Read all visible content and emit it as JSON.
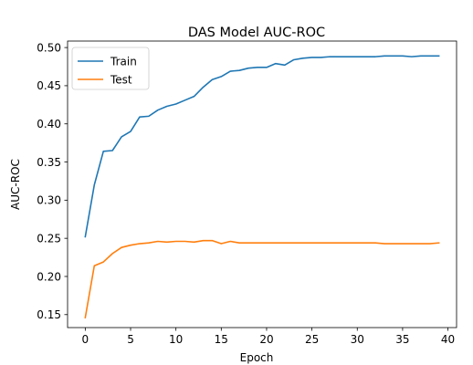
{
  "chart_data": {
    "type": "line",
    "title": "DAS Model AUC-ROC",
    "xlabel": "Epoch",
    "ylabel": "AUC-ROC",
    "xlim": [
      -1.95,
      40.95
    ],
    "ylim": [
      0.133,
      0.5085
    ],
    "xticks": [
      0,
      5,
      10,
      15,
      20,
      25,
      30,
      35,
      40
    ],
    "xtick_labels": [
      "0",
      "5",
      "10",
      "15",
      "20",
      "25",
      "30",
      "35",
      "40"
    ],
    "yticks": [
      0.15,
      0.2,
      0.25,
      0.3,
      0.35,
      0.4,
      0.45,
      0.5
    ],
    "ytick_labels": [
      "0.15",
      "0.20",
      "0.25",
      "0.30",
      "0.35",
      "0.40",
      "0.45",
      "0.50"
    ],
    "grid": false,
    "legend_position": "top-left",
    "x": [
      0,
      1,
      2,
      3,
      4,
      5,
      6,
      7,
      8,
      9,
      10,
      11,
      12,
      13,
      14,
      15,
      16,
      17,
      18,
      19,
      20,
      21,
      22,
      23,
      24,
      25,
      26,
      27,
      28,
      29,
      30,
      31,
      32,
      33,
      34,
      35,
      36,
      37,
      38,
      39
    ],
    "series": [
      {
        "name": "Train",
        "color": "#1f77b4",
        "values": [
          0.252,
          0.32,
          0.364,
          0.365,
          0.383,
          0.39,
          0.409,
          0.41,
          0.418,
          0.423,
          0.426,
          0.431,
          0.436,
          0.448,
          0.458,
          0.462,
          0.469,
          0.47,
          0.473,
          0.474,
          0.474,
          0.479,
          0.477,
          0.484,
          0.486,
          0.487,
          0.487,
          0.488,
          0.488,
          0.488,
          0.488,
          0.488,
          0.488,
          0.489,
          0.489,
          0.489,
          0.488,
          0.489,
          0.489,
          0.489
        ]
      },
      {
        "name": "Test",
        "color": "#ff7f0e",
        "values": [
          0.146,
          0.214,
          0.219,
          0.23,
          0.238,
          0.241,
          0.243,
          0.244,
          0.246,
          0.245,
          0.246,
          0.246,
          0.245,
          0.247,
          0.247,
          0.243,
          0.246,
          0.244,
          0.244,
          0.244,
          0.244,
          0.244,
          0.244,
          0.244,
          0.244,
          0.244,
          0.244,
          0.244,
          0.244,
          0.244,
          0.244,
          0.244,
          0.244,
          0.243,
          0.243,
          0.243,
          0.243,
          0.243,
          0.243,
          0.244
        ]
      }
    ]
  }
}
